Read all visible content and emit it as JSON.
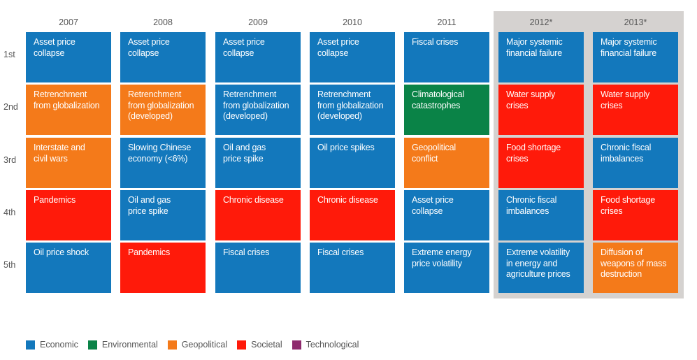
{
  "chart_data": {
    "type": "table",
    "title": "",
    "years": [
      "2007",
      "2008",
      "2009",
      "2010",
      "2011",
      "2012*",
      "2013*"
    ],
    "highlighted_years": [
      "2012*",
      "2013*"
    ],
    "ranks": [
      "1st",
      "2nd",
      "3rd",
      "4th",
      "5th"
    ],
    "categories": {
      "economic": {
        "label": "Economic",
        "color": "#1378bc"
      },
      "environmental": {
        "label": "Environmental",
        "color": "#0a8347"
      },
      "geopolitical": {
        "label": "Geopolitical",
        "color": "#f47a1a"
      },
      "societal": {
        "label": "Societal",
        "color": "#ff1a0a"
      },
      "technological": {
        "label": "Technological",
        "color": "#8e2a6d"
      }
    },
    "legend_order": [
      "economic",
      "environmental",
      "geopolitical",
      "societal",
      "technological"
    ],
    "cells": [
      [
        {
          "text": "Asset price collapse",
          "category": "economic"
        },
        {
          "text": "Retrenchment\nfrom globalization",
          "category": "geopolitical"
        },
        {
          "text": "Interstate and\ncivil wars",
          "category": "geopolitical"
        },
        {
          "text": "Pandemics",
          "category": "societal"
        },
        {
          "text": "Oil price shock",
          "category": "economic"
        }
      ],
      [
        {
          "text": "Asset price collapse",
          "category": "economic"
        },
        {
          "text": "Retrenchment\nfrom globalization\n(developed)",
          "category": "geopolitical"
        },
        {
          "text": "Slowing Chinese\neconomy (<6%)",
          "category": "economic"
        },
        {
          "text": "Oil and gas\nprice spike",
          "category": "economic"
        },
        {
          "text": "Pandemics",
          "category": "societal"
        }
      ],
      [
        {
          "text": "Asset price collapse",
          "category": "economic"
        },
        {
          "text": "Retrenchment\nfrom globalization\n(developed)",
          "category": "economic"
        },
        {
          "text": "Oil and gas\nprice spike",
          "category": "economic"
        },
        {
          "text": "Chronic disease",
          "category": "societal"
        },
        {
          "text": "Fiscal crises",
          "category": "economic"
        }
      ],
      [
        {
          "text": "Asset price collapse",
          "category": "economic"
        },
        {
          "text": "Retrenchment\nfrom globalization\n(developed)",
          "category": "economic"
        },
        {
          "text": "Oil price spikes",
          "category": "economic"
        },
        {
          "text": "Chronic disease",
          "category": "societal"
        },
        {
          "text": "Fiscal crises",
          "category": "economic"
        }
      ],
      [
        {
          "text": "Fiscal crises",
          "category": "economic"
        },
        {
          "text": "Climatological\ncatastrophes",
          "category": "environmental"
        },
        {
          "text": "Geopolitical\nconflict",
          "category": "geopolitical"
        },
        {
          "text": "Asset price collapse",
          "category": "economic"
        },
        {
          "text": "Extreme energy\nprice volatility",
          "category": "economic"
        }
      ],
      [
        {
          "text": "Major systemic\nfinancial failure",
          "category": "economic"
        },
        {
          "text": "Water supply\ncrises",
          "category": "societal"
        },
        {
          "text": "Food shortage\ncrises",
          "category": "societal"
        },
        {
          "text": "Chronic fiscal\nimbalances",
          "category": "economic"
        },
        {
          "text": "Extreme volatility\nin energy and\nagriculture prices",
          "category": "economic"
        }
      ],
      [
        {
          "text": "Major systemic\nfinancial failure",
          "category": "economic"
        },
        {
          "text": "Water supply\ncrises",
          "category": "societal"
        },
        {
          "text": "Chronic fiscal\nimbalances",
          "category": "economic"
        },
        {
          "text": "Food shortage\ncrises",
          "category": "societal"
        },
        {
          "text": "Diffusion of\nweapons of mass\ndestruction",
          "category": "geopolitical"
        }
      ]
    ]
  }
}
